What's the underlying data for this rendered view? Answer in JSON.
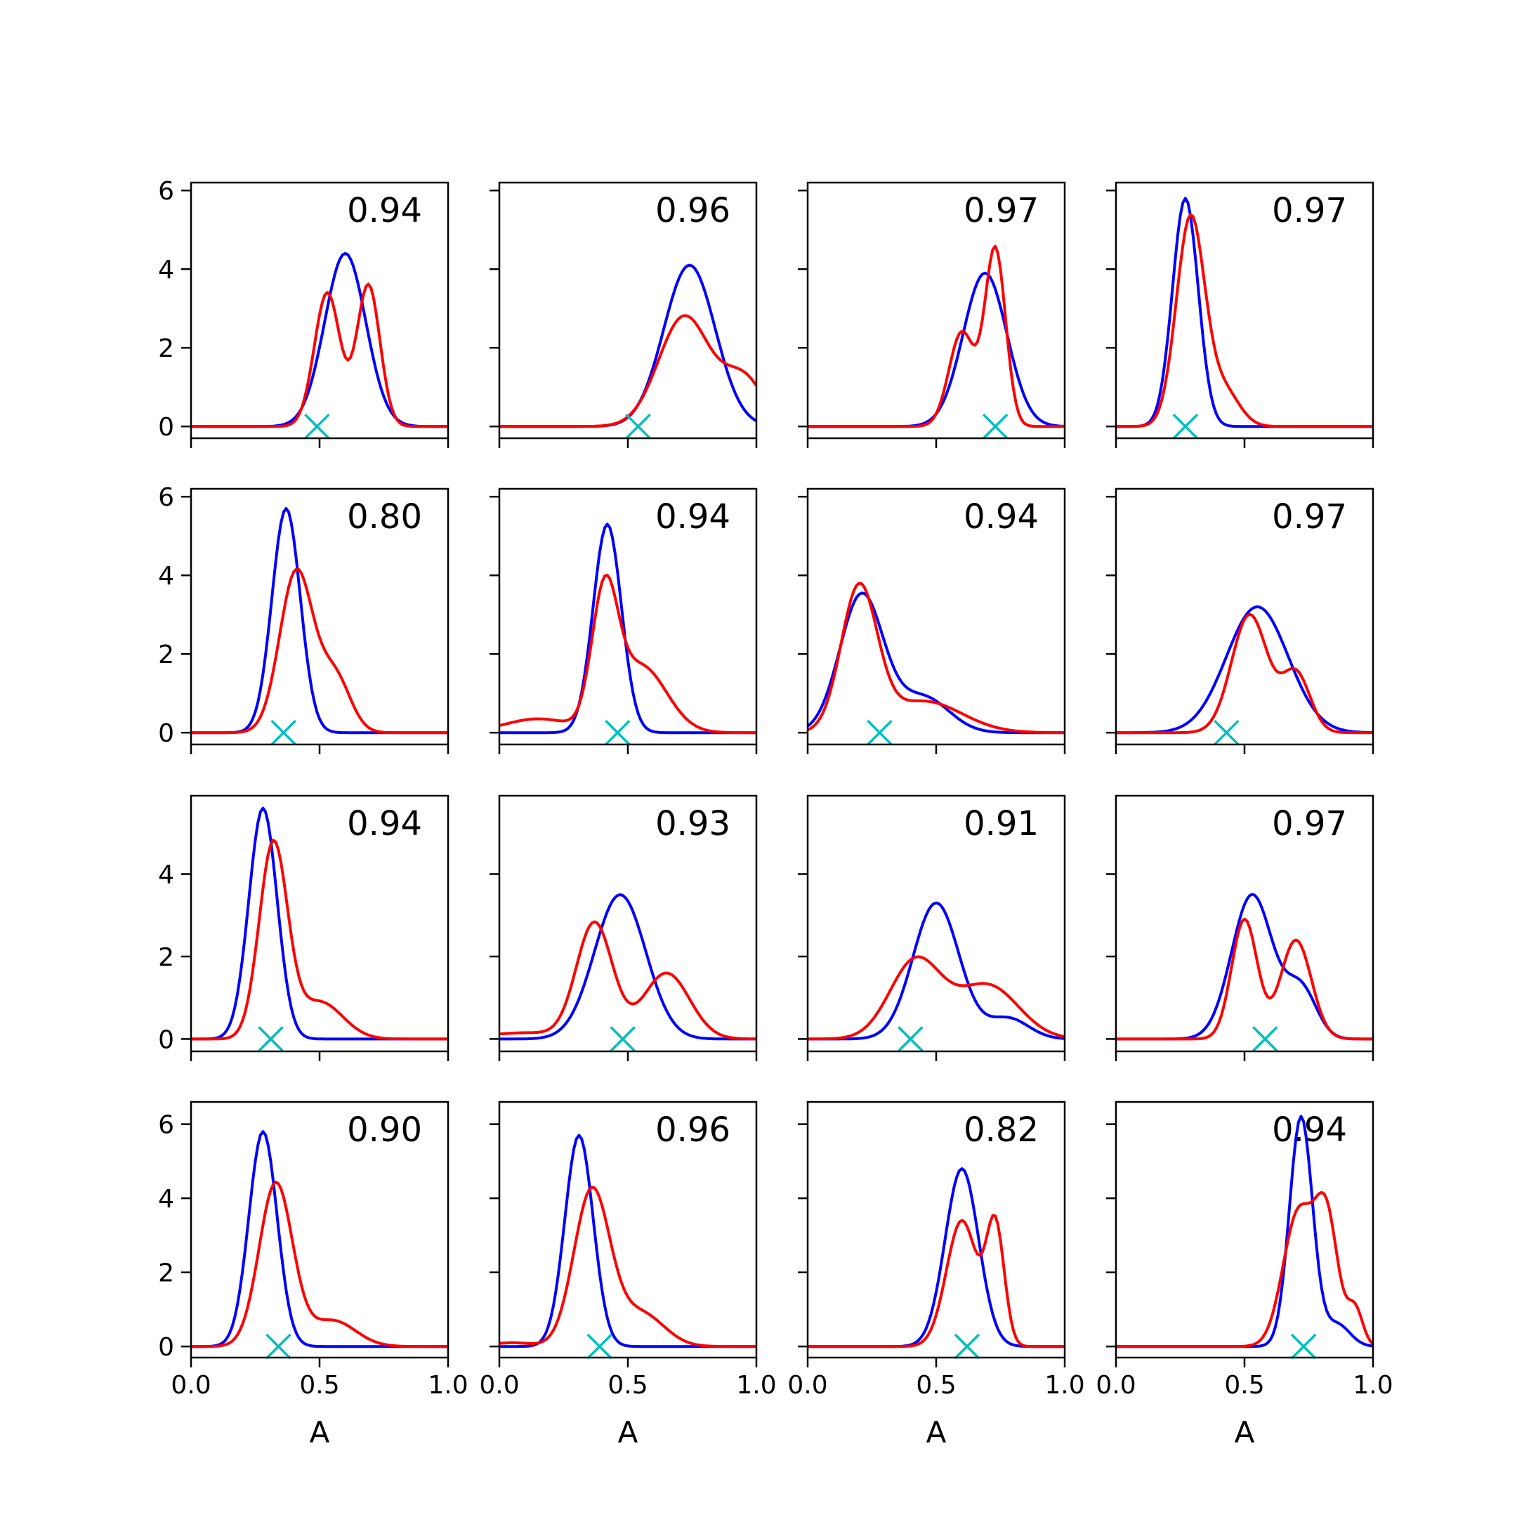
{
  "figure": {
    "xlabel": "A",
    "xticks": [
      "0.0",
      "0.5",
      "1.0"
    ],
    "series_colors": {
      "blue": "#0000ff",
      "red": "#ff0000",
      "marker": "#00bfbf"
    }
  },
  "chart_data": [
    {
      "type": "line",
      "score": "0.94",
      "xlim": [
        0,
        1
      ],
      "ylim": [
        -0.3,
        6.2
      ],
      "yticks": [
        "0",
        "2",
        "4",
        "6"
      ],
      "marker_x": 0.49,
      "series": [
        {
          "color": "#0000ff",
          "peaks": [
            {
              "mu": 0.6,
              "s": 0.08,
              "h": 4.4
            }
          ]
        },
        {
          "color": "#ff0000",
          "peaks": [
            {
              "mu": 0.53,
              "s": 0.05,
              "h": 3.4
            },
            {
              "mu": 0.69,
              "s": 0.045,
              "h": 3.6
            }
          ]
        }
      ]
    },
    {
      "type": "line",
      "score": "0.96",
      "xlim": [
        0,
        1
      ],
      "ylim": [
        -0.3,
        6.2
      ],
      "yticks": [],
      "marker_x": 0.54,
      "series": [
        {
          "color": "#0000ff",
          "peaks": [
            {
              "mu": 0.74,
              "s": 0.1,
              "h": 4.1
            }
          ]
        },
        {
          "color": "#ff0000",
          "peaks": [
            {
              "mu": 0.72,
              "s": 0.1,
              "h": 2.8
            },
            {
              "mu": 0.95,
              "s": 0.08,
              "h": 1.2
            }
          ]
        }
      ]
    },
    {
      "type": "line",
      "score": "0.97",
      "xlim": [
        0,
        1
      ],
      "ylim": [
        -0.3,
        6.2
      ],
      "yticks": [],
      "marker_x": 0.73,
      "series": [
        {
          "color": "#0000ff",
          "peaks": [
            {
              "mu": 0.69,
              "s": 0.085,
              "h": 3.9
            }
          ]
        },
        {
          "color": "#ff0000",
          "peaks": [
            {
              "mu": 0.6,
              "s": 0.05,
              "h": 2.4
            },
            {
              "mu": 0.73,
              "s": 0.04,
              "h": 4.5
            }
          ]
        }
      ]
    },
    {
      "type": "line",
      "score": "0.97",
      "xlim": [
        0,
        1
      ],
      "ylim": [
        -0.3,
        6.2
      ],
      "yticks": [],
      "marker_x": 0.27,
      "series": [
        {
          "color": "#0000ff",
          "peaks": [
            {
              "mu": 0.27,
              "s": 0.05,
              "h": 5.8
            }
          ]
        },
        {
          "color": "#ff0000",
          "peaks": [
            {
              "mu": 0.29,
              "s": 0.055,
              "h": 5.3
            },
            {
              "mu": 0.42,
              "s": 0.06,
              "h": 0.9
            }
          ]
        }
      ]
    },
    {
      "type": "line",
      "score": "0.80",
      "xlim": [
        0,
        1
      ],
      "ylim": [
        -0.3,
        6.2
      ],
      "yticks": [
        "0",
        "2",
        "4",
        "6"
      ],
      "marker_x": 0.36,
      "series": [
        {
          "color": "#0000ff",
          "peaks": [
            {
              "mu": 0.37,
              "s": 0.055,
              "h": 5.7
            }
          ]
        },
        {
          "color": "#ff0000",
          "peaks": [
            {
              "mu": 0.41,
              "s": 0.065,
              "h": 4.1
            },
            {
              "mu": 0.56,
              "s": 0.06,
              "h": 1.4
            }
          ]
        }
      ]
    },
    {
      "type": "line",
      "score": "0.94",
      "xlim": [
        0,
        1
      ],
      "ylim": [
        -0.3,
        6.2
      ],
      "yticks": [],
      "marker_x": 0.46,
      "series": [
        {
          "color": "#0000ff",
          "peaks": [
            {
              "mu": 0.42,
              "s": 0.055,
              "h": 5.3
            }
          ]
        },
        {
          "color": "#ff0000",
          "peaks": [
            {
              "mu": 0.41,
              "s": 0.05,
              "h": 3.3
            },
            {
              "mu": 0.55,
              "s": 0.1,
              "h": 1.7
            },
            {
              "mu": 0.15,
              "s": 0.13,
              "h": 0.35
            }
          ]
        }
      ]
    },
    {
      "type": "line",
      "score": "0.94",
      "xlim": [
        0,
        1
      ],
      "ylim": [
        -0.3,
        6.2
      ],
      "yticks": [],
      "marker_x": 0.28,
      "series": [
        {
          "color": "#0000ff",
          "peaks": [
            {
              "mu": 0.21,
              "s": 0.085,
              "h": 3.5
            },
            {
              "mu": 0.45,
              "s": 0.1,
              "h": 0.9
            }
          ]
        },
        {
          "color": "#ff0000",
          "peaks": [
            {
              "mu": 0.2,
              "s": 0.07,
              "h": 3.6
            },
            {
              "mu": 0.45,
              "s": 0.15,
              "h": 0.8
            }
          ]
        }
      ]
    },
    {
      "type": "line",
      "score": "0.97",
      "xlim": [
        0,
        1
      ],
      "ylim": [
        -0.3,
        6.2
      ],
      "yticks": [],
      "marker_x": 0.43,
      "series": [
        {
          "color": "#0000ff",
          "peaks": [
            {
              "mu": 0.55,
              "s": 0.12,
              "h": 3.2
            }
          ]
        },
        {
          "color": "#ff0000",
          "peaks": [
            {
              "mu": 0.52,
              "s": 0.07,
              "h": 3.0
            },
            {
              "mu": 0.7,
              "s": 0.055,
              "h": 1.5
            }
          ]
        }
      ]
    },
    {
      "type": "line",
      "score": "0.94",
      "xlim": [
        0,
        1
      ],
      "ylim": [
        -0.3,
        5.9
      ],
      "yticks": [
        "0",
        "2",
        "4"
      ],
      "marker_x": 0.31,
      "series": [
        {
          "color": "#0000ff",
          "peaks": [
            {
              "mu": 0.28,
              "s": 0.055,
              "h": 5.6
            }
          ]
        },
        {
          "color": "#ff0000",
          "peaks": [
            {
              "mu": 0.32,
              "s": 0.055,
              "h": 4.7
            },
            {
              "mu": 0.5,
              "s": 0.09,
              "h": 0.9
            }
          ]
        }
      ]
    },
    {
      "type": "line",
      "score": "0.93",
      "xlim": [
        0,
        1
      ],
      "ylim": [
        -0.3,
        5.9
      ],
      "yticks": [],
      "marker_x": 0.48,
      "series": [
        {
          "color": "#0000ff",
          "peaks": [
            {
              "mu": 0.47,
              "s": 0.1,
              "h": 3.5
            }
          ]
        },
        {
          "color": "#ff0000",
          "peaks": [
            {
              "mu": 0.37,
              "s": 0.07,
              "h": 2.8
            },
            {
              "mu": 0.65,
              "s": 0.09,
              "h": 1.6
            },
            {
              "mu": 0.1,
              "s": 0.15,
              "h": 0.15
            }
          ]
        }
      ]
    },
    {
      "type": "line",
      "score": "0.91",
      "xlim": [
        0,
        1
      ],
      "ylim": [
        -0.3,
        5.9
      ],
      "yticks": [],
      "marker_x": 0.4,
      "series": [
        {
          "color": "#0000ff",
          "peaks": [
            {
              "mu": 0.5,
              "s": 0.09,
              "h": 3.3
            },
            {
              "mu": 0.78,
              "s": 0.08,
              "h": 0.5
            }
          ]
        },
        {
          "color": "#ff0000",
          "peaks": [
            {
              "mu": 0.42,
              "s": 0.1,
              "h": 1.9
            },
            {
              "mu": 0.7,
              "s": 0.12,
              "h": 1.3
            }
          ]
        }
      ]
    },
    {
      "type": "line",
      "score": "0.97",
      "xlim": [
        0,
        1
      ],
      "ylim": [
        -0.3,
        5.9
      ],
      "yticks": [],
      "marker_x": 0.58,
      "series": [
        {
          "color": "#0000ff",
          "peaks": [
            {
              "mu": 0.53,
              "s": 0.08,
              "h": 3.5
            },
            {
              "mu": 0.72,
              "s": 0.06,
              "h": 1.2
            }
          ]
        },
        {
          "color": "#ff0000",
          "peaks": [
            {
              "mu": 0.5,
              "s": 0.05,
              "h": 2.9
            },
            {
              "mu": 0.7,
              "s": 0.06,
              "h": 2.4
            }
          ]
        }
      ]
    },
    {
      "type": "line",
      "score": "0.90",
      "xlim": [
        0,
        1
      ],
      "ylim": [
        -0.3,
        6.6
      ],
      "yticks": [
        "0",
        "2",
        "4",
        "6"
      ],
      "marker_x": 0.34,
      "series": [
        {
          "color": "#0000ff",
          "peaks": [
            {
              "mu": 0.28,
              "s": 0.055,
              "h": 5.8
            }
          ]
        },
        {
          "color": "#ff0000",
          "peaks": [
            {
              "mu": 0.33,
              "s": 0.065,
              "h": 4.4
            },
            {
              "mu": 0.55,
              "s": 0.09,
              "h": 0.7
            }
          ]
        }
      ]
    },
    {
      "type": "line",
      "score": "0.96",
      "xlim": [
        0,
        1
      ],
      "ylim": [
        -0.3,
        6.6
      ],
      "yticks": [],
      "marker_x": 0.39,
      "series": [
        {
          "color": "#0000ff",
          "peaks": [
            {
              "mu": 0.31,
              "s": 0.055,
              "h": 5.7
            }
          ]
        },
        {
          "color": "#ff0000",
          "peaks": [
            {
              "mu": 0.36,
              "s": 0.07,
              "h": 4.2
            },
            {
              "mu": 0.55,
              "s": 0.09,
              "h": 0.9
            },
            {
              "mu": 0.05,
              "s": 0.08,
              "h": 0.1
            }
          ]
        }
      ]
    },
    {
      "type": "line",
      "score": "0.82",
      "xlim": [
        0,
        1
      ],
      "ylim": [
        -0.3,
        6.6
      ],
      "yticks": [],
      "marker_x": 0.62,
      "series": [
        {
          "color": "#0000ff",
          "peaks": [
            {
              "mu": 0.6,
              "s": 0.065,
              "h": 4.8
            }
          ]
        },
        {
          "color": "#ff0000",
          "peaks": [
            {
              "mu": 0.6,
              "s": 0.06,
              "h": 3.4
            },
            {
              "mu": 0.73,
              "s": 0.035,
              "h": 3.2
            }
          ]
        }
      ]
    },
    {
      "type": "line",
      "score": "0.94",
      "xlim": [
        0,
        1
      ],
      "ylim": [
        -0.3,
        6.6
      ],
      "yticks": [],
      "marker_x": 0.73,
      "series": [
        {
          "color": "#0000ff",
          "peaks": [
            {
              "mu": 0.72,
              "s": 0.045,
              "h": 6.2
            },
            {
              "mu": 0.86,
              "s": 0.05,
              "h": 0.6
            }
          ]
        },
        {
          "color": "#ff0000",
          "peaks": [
            {
              "mu": 0.71,
              "s": 0.06,
              "h": 3.6
            },
            {
              "mu": 0.82,
              "s": 0.045,
              "h": 3.3
            },
            {
              "mu": 0.93,
              "s": 0.03,
              "h": 1.0
            }
          ]
        }
      ]
    }
  ]
}
